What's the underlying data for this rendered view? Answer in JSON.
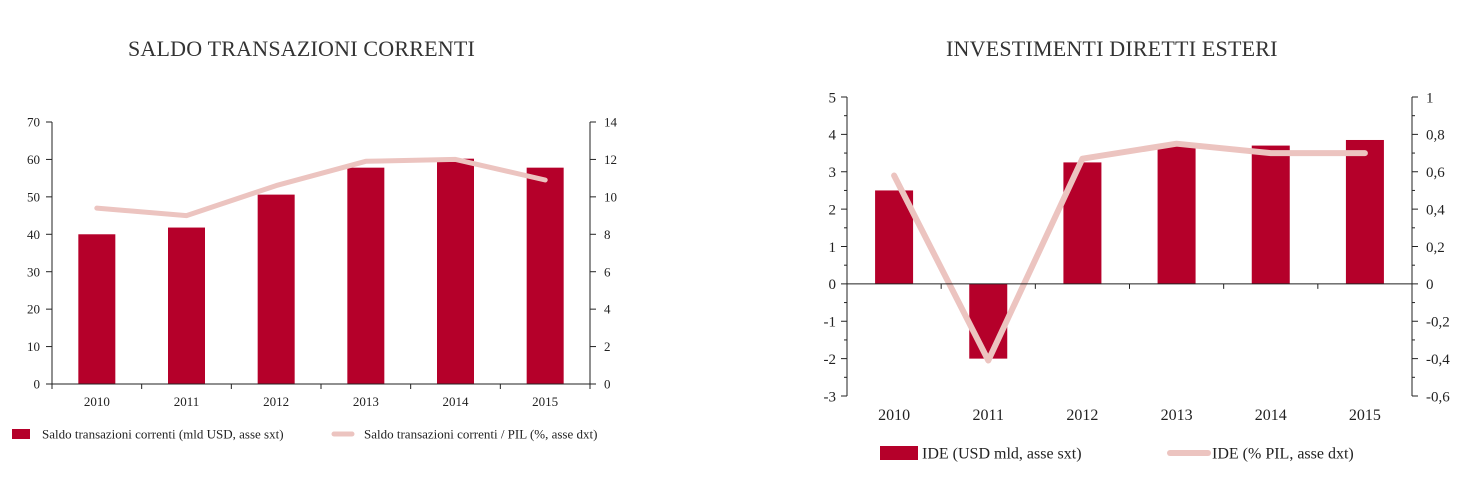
{
  "colors": {
    "bar": "#b5002a",
    "line": "#ecc4c0",
    "axis": "#222222"
  },
  "chart_data": [
    {
      "type": "bar",
      "title": "SALDO TRANSAZIONI CORRENTI",
      "categories": [
        "2010",
        "2011",
        "2012",
        "2013",
        "2014",
        "2015"
      ],
      "series": [
        {
          "name": "Saldo transazioni correnti (mld USD, asse sxt)",
          "kind": "bar",
          "axis": "left",
          "values": [
            40,
            41.8,
            50.6,
            57.8,
            60.2,
            57.8
          ]
        },
        {
          "name": "Saldo transazioni correnti / PIL (%, asse dxt)",
          "kind": "line",
          "axis": "right",
          "values": [
            9.4,
            9.0,
            10.6,
            11.9,
            12.0,
            10.9
          ]
        }
      ],
      "ylim_left": [
        0,
        70
      ],
      "ylim_right": [
        0,
        14
      ],
      "yticks_left": [
        "0",
        "10",
        "20",
        "30",
        "40",
        "50",
        "60",
        "70"
      ],
      "yticks_right": [
        "0",
        "2",
        "4",
        "6",
        "8",
        "10",
        "12",
        "14"
      ],
      "grid": false,
      "legend": "bottom"
    },
    {
      "type": "bar",
      "title": "INVESTIMENTI DIRETTI ESTERI",
      "categories": [
        "2010",
        "2011",
        "2012",
        "2013",
        "2014",
        "2015"
      ],
      "series": [
        {
          "name": "IDE (USD mld, asse sxt)",
          "kind": "bar",
          "axis": "left",
          "values": [
            2.5,
            -2.0,
            3.25,
            3.7,
            3.7,
            3.85
          ]
        },
        {
          "name": "IDE (% PIL, asse dxt)",
          "kind": "line",
          "axis": "right",
          "values": [
            0.58,
            -0.41,
            0.67,
            0.75,
            0.7,
            0.7
          ]
        }
      ],
      "ylim_left": [
        -3,
        5
      ],
      "ylim_right": [
        -0.6,
        1
      ],
      "yticks_left": [
        "-3",
        "-2",
        "-1",
        "0",
        "1",
        "2",
        "3",
        "4",
        "5"
      ],
      "yticks_right": [
        "-0,6",
        "-0,4",
        "-0,2",
        "0",
        "0,2",
        "0,4",
        "0,6",
        "0,8",
        "1"
      ],
      "grid": false,
      "legend": "bottom"
    }
  ]
}
